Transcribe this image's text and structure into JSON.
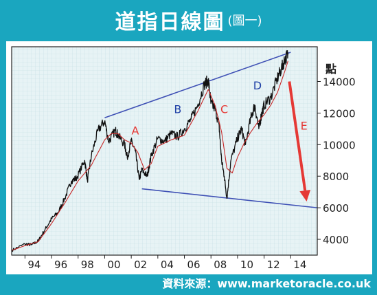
{
  "header": {
    "title": "道指日線圖",
    "subtitle": "(圖一)"
  },
  "source": "資料來源：www.marketoracle.co.uk",
  "chart_data": {
    "type": "line",
    "title": "道指日線圖",
    "subtitle": "(圖一)",
    "ylabel": "點",
    "xlim": [
      1993.0,
      2016.0
    ],
    "ylim": [
      3000,
      16200
    ],
    "x_tick_labels": [
      "94",
      "96",
      "98",
      "00",
      "02",
      "04",
      "06",
      "08",
      "10",
      "12",
      "14"
    ],
    "x_tick_values": [
      1994,
      1996,
      1998,
      2000,
      2002,
      2004,
      2006,
      2008,
      2010,
      2012,
      2014
    ],
    "y_tick_labels": [
      "4000",
      "6000",
      "8000",
      "10000",
      "12000",
      "14000"
    ],
    "y_tick_values": [
      4000,
      6000,
      8000,
      10000,
      12000,
      14000
    ],
    "grid": true,
    "series": [
      {
        "key": "price",
        "color": "#111111",
        "x": [
          1993.0,
          1994.0,
          1994.5,
          1995.0,
          1995.5,
          1996.0,
          1996.5,
          1997.0,
          1997.5,
          1997.9,
          1998.5,
          1998.7,
          1999.0,
          1999.5,
          2000.0,
          2000.3,
          2000.8,
          2001.0,
          2001.5,
          2001.7,
          2002.0,
          2002.3,
          2002.6,
          2002.8,
          2003.2,
          2003.5,
          2004.0,
          2004.5,
          2005.0,
          2005.5,
          2006.0,
          2006.5,
          2007.0,
          2007.5,
          2007.8,
          2008.0,
          2008.3,
          2008.6,
          2008.8,
          2009.0,
          2009.2,
          2009.5,
          2010.0,
          2010.3,
          2010.6,
          2011.0,
          2011.3,
          2011.6,
          2011.8,
          2012.0,
          2012.5,
          2013.0,
          2013.3,
          2013.6,
          2013.8
        ],
        "y": [
          3300,
          3700,
          3650,
          3900,
          4600,
          5300,
          5700,
          6600,
          7700,
          7900,
          9000,
          7700,
          9300,
          10900,
          11500,
          10200,
          10900,
          10600,
          10000,
          9200,
          10200,
          9600,
          7800,
          8400,
          8000,
          9300,
          10400,
          10200,
          10700,
          10500,
          11000,
          11600,
          12500,
          13800,
          14100,
          12600,
          12300,
          11300,
          9000,
          8000,
          6600,
          9000,
          10400,
          11000,
          10000,
          11700,
          12500,
          11000,
          11900,
          12500,
          13000,
          14200,
          14800,
          15500,
          15700
        ]
      },
      {
        "key": "moving_average",
        "color": "#c62828",
        "x": [
          1993.0,
          1994.0,
          1995.0,
          1996.0,
          1997.0,
          1998.0,
          1999.0,
          2000.0,
          2000.5,
          2001.0,
          2001.5,
          2002.0,
          2002.5,
          2003.0,
          2003.5,
          2004.0,
          2005.0,
          2006.0,
          2007.0,
          2007.8,
          2008.3,
          2008.8,
          2009.2,
          2009.6,
          2010.0,
          2010.5,
          2011.0,
          2011.5,
          2012.0,
          2012.5,
          2013.0,
          2013.5,
          2013.8
        ],
        "y": [
          3300,
          3600,
          3850,
          5000,
          6300,
          7700,
          8700,
          10300,
          10700,
          10700,
          10300,
          10100,
          9500,
          8400,
          8800,
          9900,
          10300,
          10600,
          12100,
          13500,
          12500,
          10800,
          8500,
          8200,
          9200,
          10100,
          10800,
          11400,
          11900,
          12500,
          13300,
          14500,
          15300
        ]
      }
    ],
    "trendlines": [
      {
        "key": "upper",
        "color": "#3f51b5",
        "from": [
          2000.0,
          11700
        ],
        "to": [
          2014.0,
          15850
        ]
      },
      {
        "key": "lower",
        "color": "#3f51b5",
        "from": [
          2002.8,
          7200
        ],
        "to": [
          2016.0,
          6000
        ]
      }
    ],
    "projection_arrow": {
      "color": "#e53935",
      "from": [
        2013.9,
        14000
      ],
      "to": [
        2015.2,
        6400
      ]
    },
    "annotations": [
      {
        "label": "A",
        "color": "#e53935",
        "x": 2002.3,
        "y": 10650
      },
      {
        "label": "B",
        "color": "#2041a6",
        "x": 2005.5,
        "y": 12000
      },
      {
        "label": "C",
        "color": "#e53935",
        "x": 2009.0,
        "y": 12000
      },
      {
        "label": "D",
        "color": "#2041a6",
        "x": 2011.5,
        "y": 13500
      },
      {
        "label": "E",
        "color": "#e53935",
        "x": 2015.0,
        "y": 10950
      }
    ]
  }
}
